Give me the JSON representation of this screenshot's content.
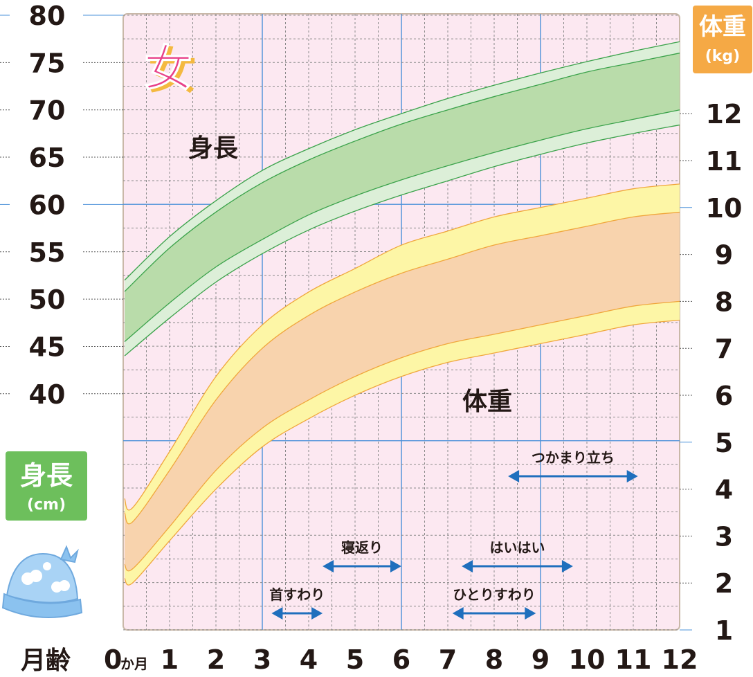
{
  "chart_data": {
    "type": "area",
    "gender_mark": "女",
    "height_label": "身長",
    "weight_label": "体重",
    "left_axis": {
      "title": "身長",
      "unit": "(cm)",
      "ticks": [
        40,
        45,
        50,
        55,
        60,
        65,
        70,
        75,
        80
      ],
      "range": [
        35,
        80
      ]
    },
    "right_axis": {
      "title": "体重",
      "unit": "(kg)",
      "ticks": [
        1,
        2,
        3,
        4,
        5,
        6,
        7,
        8,
        9,
        10,
        11,
        12
      ],
      "range": [
        1,
        13
      ]
    },
    "x_axis": {
      "title": "月齢",
      "first_label": "0",
      "first_unit": "か月",
      "ticks": [
        0,
        1,
        2,
        3,
        4,
        5,
        6,
        7,
        8,
        9,
        10,
        11,
        12
      ],
      "range": [
        0,
        12
      ]
    },
    "series": [
      {
        "name": "身長",
        "axis": "left",
        "months": [
          0,
          1,
          2,
          3,
          4,
          5,
          6,
          7,
          8,
          9,
          10,
          11,
          12
        ],
        "p3": [
          44.0,
          48.0,
          51.8,
          54.8,
          57.3,
          59.3,
          61.0,
          62.5,
          64.0,
          65.3,
          66.5,
          67.5,
          68.4
        ],
        "p10": [
          45.5,
          49.6,
          53.4,
          56.3,
          58.9,
          60.9,
          62.6,
          64.1,
          65.5,
          66.8,
          68.0,
          69.0,
          70.0
        ],
        "p90": [
          50.8,
          55.4,
          59.2,
          62.3,
          64.7,
          66.7,
          68.5,
          70.0,
          71.4,
          72.7,
          74.0,
          75.0,
          76.0
        ],
        "p97": [
          52.0,
          56.6,
          60.4,
          63.6,
          65.9,
          67.9,
          69.6,
          71.2,
          72.6,
          73.9,
          75.1,
          76.2,
          77.2
        ]
      },
      {
        "name": "体重",
        "axis": "right",
        "months": [
          0,
          0.2,
          1,
          2,
          3,
          4,
          5,
          6,
          7,
          8,
          9,
          10,
          11,
          12
        ],
        "p3": [
          2.1,
          2.0,
          2.9,
          4.0,
          4.9,
          5.5,
          6.0,
          6.4,
          6.7,
          6.9,
          7.1,
          7.3,
          7.5,
          7.6
        ],
        "p10": [
          2.4,
          2.3,
          3.2,
          4.4,
          5.3,
          5.9,
          6.4,
          6.8,
          7.1,
          7.3,
          7.5,
          7.7,
          7.9,
          8.0
        ],
        "p90": [
          3.5,
          3.3,
          4.4,
          5.9,
          7.0,
          7.7,
          8.2,
          8.6,
          8.9,
          9.2,
          9.4,
          9.6,
          9.8,
          9.9
        ],
        "p97": [
          3.8,
          3.6,
          4.8,
          6.4,
          7.5,
          8.2,
          8.7,
          9.2,
          9.5,
          9.8,
          10.0,
          10.2,
          10.4,
          10.5
        ]
      }
    ],
    "milestones": [
      {
        "label": "首すわり",
        "start": 3.2,
        "end": 4.3
      },
      {
        "label": "寝返り",
        "start": 4.3,
        "end": 6.0
      },
      {
        "label": "ひとりすわり",
        "start": 7.1,
        "end": 8.9
      },
      {
        "label": "はいはい",
        "start": 7.3,
        "end": 9.7
      },
      {
        "label": "つかまり立ち",
        "start": 8.3,
        "end": 11.1
      }
    ],
    "colors": {
      "background_pink": "#fce8f1",
      "height_outer": "#dcefd8",
      "height_inner": "#b9dcaa",
      "height_line": "#3aa24a",
      "weight_outer": "#fdf6a6",
      "weight_inner": "#f8d3ad",
      "weight_line": "#f0a63c",
      "arrow_blue": "#1f6fbd",
      "grid_blue": "#4a90d9",
      "gender_pink": "#e8418a",
      "height_badge": "#6dbf5c",
      "weight_badge": "#f5a945"
    }
  }
}
